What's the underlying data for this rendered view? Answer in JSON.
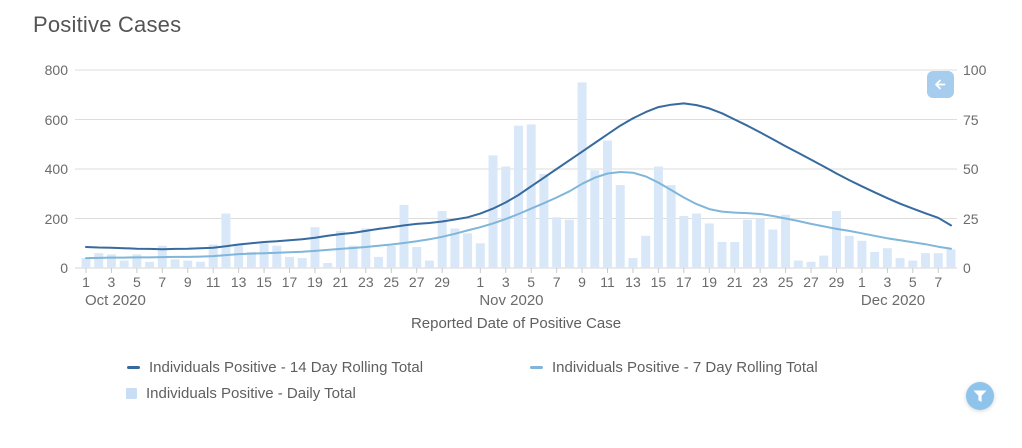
{
  "title": "Positive Cases",
  "buttons": {
    "back": {
      "icon": "arrow-left"
    },
    "filter": {
      "icon": "funnel"
    }
  },
  "chart_data": {
    "type": "bar+line-combo",
    "title": "Positive Cases",
    "xlabel": "Reported Date of Positive Case",
    "grid": true,
    "left_axis": {
      "ylim": [
        0,
        800
      ],
      "ticks": [
        0,
        200,
        400,
        600,
        800
      ]
    },
    "right_axis": {
      "ylim": [
        0,
        100
      ],
      "ticks": [
        0,
        25,
        50,
        75,
        100
      ]
    },
    "x_months": [
      {
        "index": 0,
        "label": "Oct 2020"
      },
      {
        "index": 31,
        "label": "Nov 2020"
      },
      {
        "index": 61,
        "label": "Dec 2020"
      }
    ],
    "x_day_ticks": [
      {
        "index": 0,
        "label": "1"
      },
      {
        "index": 2,
        "label": "3"
      },
      {
        "index": 4,
        "label": "5"
      },
      {
        "index": 6,
        "label": "7"
      },
      {
        "index": 8,
        "label": "9"
      },
      {
        "index": 10,
        "label": "11"
      },
      {
        "index": 12,
        "label": "13"
      },
      {
        "index": 14,
        "label": "15"
      },
      {
        "index": 16,
        "label": "17"
      },
      {
        "index": 18,
        "label": "19"
      },
      {
        "index": 20,
        "label": "21"
      },
      {
        "index": 22,
        "label": "23"
      },
      {
        "index": 24,
        "label": "25"
      },
      {
        "index": 26,
        "label": "27"
      },
      {
        "index": 28,
        "label": "29"
      },
      {
        "index": 31,
        "label": "1"
      },
      {
        "index": 33,
        "label": "3"
      },
      {
        "index": 35,
        "label": "5"
      },
      {
        "index": 37,
        "label": "7"
      },
      {
        "index": 39,
        "label": "9"
      },
      {
        "index": 41,
        "label": "11"
      },
      {
        "index": 43,
        "label": "13"
      },
      {
        "index": 45,
        "label": "15"
      },
      {
        "index": 47,
        "label": "17"
      },
      {
        "index": 49,
        "label": "19"
      },
      {
        "index": 51,
        "label": "21"
      },
      {
        "index": 53,
        "label": "23"
      },
      {
        "index": 55,
        "label": "25"
      },
      {
        "index": 57,
        "label": "27"
      },
      {
        "index": 59,
        "label": "29"
      },
      {
        "index": 61,
        "label": "1"
      },
      {
        "index": 63,
        "label": "3"
      },
      {
        "index": 65,
        "label": "5"
      },
      {
        "index": 67,
        "label": "7"
      }
    ],
    "dates": [
      "Oct 1",
      "Oct 2",
      "Oct 3",
      "Oct 4",
      "Oct 5",
      "Oct 6",
      "Oct 7",
      "Oct 8",
      "Oct 9",
      "Oct 10",
      "Oct 11",
      "Oct 12",
      "Oct 13",
      "Oct 14",
      "Oct 15",
      "Oct 16",
      "Oct 17",
      "Oct 18",
      "Oct 19",
      "Oct 20",
      "Oct 21",
      "Oct 22",
      "Oct 23",
      "Oct 24",
      "Oct 25",
      "Oct 26",
      "Oct 27",
      "Oct 28",
      "Oct 29",
      "Oct 30",
      "Oct 31",
      "Nov 1",
      "Nov 2",
      "Nov 3",
      "Nov 4",
      "Nov 5",
      "Nov 6",
      "Nov 7",
      "Nov 8",
      "Nov 9",
      "Nov 10",
      "Nov 11",
      "Nov 12",
      "Nov 13",
      "Nov 14",
      "Nov 15",
      "Nov 16",
      "Nov 17",
      "Nov 18",
      "Nov 19",
      "Nov 20",
      "Nov 21",
      "Nov 22",
      "Nov 23",
      "Nov 24",
      "Nov 25",
      "Nov 26",
      "Nov 27",
      "Nov 28",
      "Nov 29",
      "Nov 30",
      "Dec 1",
      "Dec 2",
      "Dec 3",
      "Dec 4",
      "Dec 5",
      "Dec 6",
      "Dec 7",
      "Dec 8"
    ],
    "series": [
      {
        "name": "Individuals Positive - Daily Total",
        "type": "bar",
        "color": "#d9e8f8",
        "axis": "left",
        "values": [
          40,
          60,
          55,
          30,
          55,
          25,
          90,
          35,
          30,
          25,
          95,
          220,
          95,
          65,
          100,
          90,
          45,
          40,
          165,
          20,
          150,
          90,
          160,
          45,
          90,
          255,
          85,
          30,
          230,
          160,
          140,
          100,
          455,
          410,
          575,
          580,
          380,
          205,
          195,
          750,
          395,
          515,
          335,
          40,
          130,
          410,
          335,
          210,
          220,
          180,
          105,
          105,
          195,
          200,
          155,
          215,
          30,
          25,
          50,
          230,
          130,
          110,
          65,
          80,
          40,
          30,
          60,
          60,
          75
        ]
      },
      {
        "name": "Individuals Positive - 14 Day Rolling Total",
        "type": "line",
        "color": "#376a9f",
        "axis": "left",
        "values": [
          85,
          83,
          82,
          80,
          78,
          77,
          76,
          77,
          78,
          80,
          82,
          88,
          95,
          100,
          105,
          108,
          112,
          116,
          122,
          130,
          137,
          142,
          150,
          158,
          165,
          172,
          178,
          182,
          188,
          196,
          205,
          220,
          240,
          265,
          295,
          330,
          365,
          400,
          435,
          470,
          505,
          540,
          575,
          605,
          630,
          650,
          660,
          665,
          658,
          645,
          625,
          600,
          575,
          548,
          520,
          492,
          465,
          438,
          410,
          382,
          355,
          330,
          306,
          282,
          260,
          240,
          221,
          203,
          172
        ]
      },
      {
        "name": "Individuals Positive - 7 Day Rolling Total",
        "type": "line",
        "color": "#7fb6da",
        "axis": "left",
        "values": [
          40,
          41,
          42,
          42,
          43,
          43,
          44,
          45,
          45,
          46,
          48,
          52,
          56,
          58,
          60,
          62,
          64,
          66,
          69,
          73,
          77,
          81,
          85,
          90,
          95,
          101,
          108,
          116,
          126,
          138,
          152,
          165,
          180,
          198,
          218,
          240,
          262,
          285,
          310,
          340,
          365,
          382,
          388,
          385,
          370,
          345,
          315,
          285,
          258,
          238,
          228,
          224,
          222,
          218,
          210,
          200,
          190,
          178,
          168,
          158,
          150,
          140,
          130,
          120,
          112,
          104,
          96,
          86,
          78
        ]
      }
    ],
    "legend": [
      {
        "label": "Individuals Positive - 14 Day Rolling Total",
        "marker": "line",
        "color": "#376a9f"
      },
      {
        "label": "Individuals Positive - 7 Day Rolling Total",
        "marker": "line",
        "color": "#7fb6da"
      },
      {
        "label": "Individuals Positive - Daily Total",
        "marker": "square",
        "color": "#c9def5"
      }
    ]
  },
  "colors": {
    "grid": "#dddddd",
    "axis_line": "#d4d4d4",
    "tick_mark": "#c9c9c9",
    "text": "#6b6b6b",
    "title": "#545454",
    "back_button_bg": "#a6cdee",
    "filter_button_bg": "#8ec4eb"
  }
}
